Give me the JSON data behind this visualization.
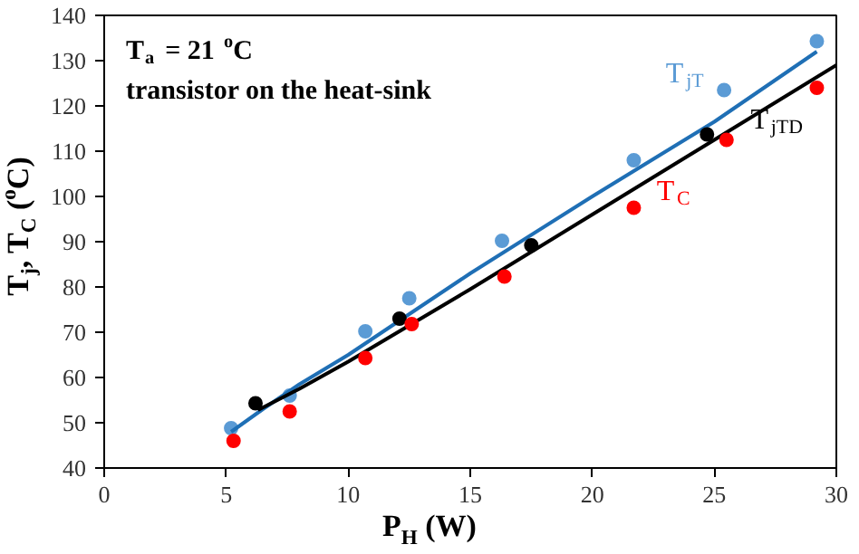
{
  "chart_data": {
    "type": "scatter",
    "xlabel": "P$_{H}$ (W)",
    "ylabel": "T$_{j}$, T$_{C}$ ($^{o}$C)",
    "xlim": [
      0,
      30
    ],
    "ylim": [
      40,
      140
    ],
    "xticks": [
      0,
      5,
      10,
      15,
      20,
      25,
      30
    ],
    "yticks": [
      40,
      50,
      60,
      70,
      80,
      90,
      100,
      110,
      120,
      130,
      140
    ],
    "grid": false,
    "marker": "circle",
    "annotations": [
      "T$_{a}$ = 21 $^{o}$C",
      "transistor on the heat-sink"
    ],
    "series": [
      {
        "name": "T$_{jT}$",
        "color": "#5b9bd5",
        "x": [
          5.2,
          7.6,
          10.7,
          12.5,
          16.3,
          21.7,
          25.4,
          29.2
        ],
        "values": [
          48.8,
          56,
          70.2,
          77.5,
          90.2,
          108,
          123.5,
          134.3
        ]
      },
      {
        "type": "line",
        "marker": "none",
        "color": "#1f6fb5",
        "x": [
          5.2,
          6.5,
          8,
          10,
          12.5,
          15,
          20,
          25,
          29.2
        ],
        "values": [
          48,
          53,
          58.5,
          65,
          74,
          83,
          100,
          116.5,
          132
        ]
      },
      {
        "name": "T$_{jTD}$",
        "color": "#000000",
        "x": [
          6.2,
          12.1,
          17.5,
          24.7
        ],
        "values": [
          54.3,
          73,
          89.2,
          113.7
        ]
      },
      {
        "type": "line",
        "marker": "none",
        "color": "#000000",
        "x": [
          6.3,
          8,
          10,
          12.5,
          15,
          20,
          25,
          30
        ],
        "values": [
          52.8,
          57.5,
          63.5,
          71.5,
          79.5,
          96,
          112.5,
          129
        ]
      },
      {
        "name": "T$_{C}$",
        "color": "#ff0000",
        "x": [
          5.3,
          7.6,
          10.7,
          12.6,
          16.4,
          21.7,
          25.5,
          29.2
        ],
        "values": [
          46,
          52.5,
          64.3,
          71.8,
          82.3,
          97.5,
          112.5,
          124
        ]
      }
    ]
  }
}
